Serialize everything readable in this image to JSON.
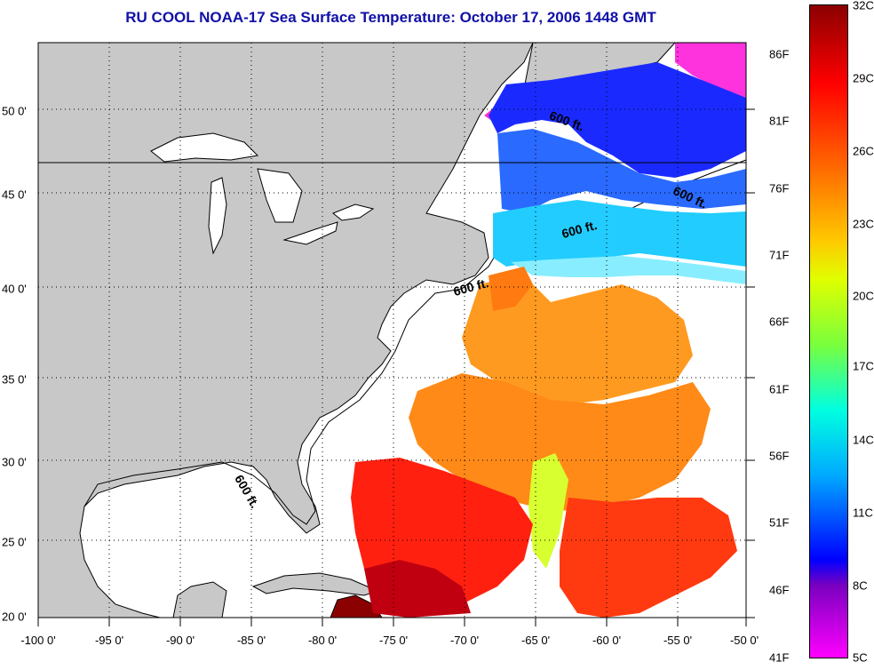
{
  "title": "RU COOL  NOAA-17  Sea Surface Temperature:  October 17, 2006 1448 GMT",
  "lon_labels": [
    "-100 0'",
    "-95 0'",
    "-90 0'",
    "-85 0'",
    "-80 0'",
    "-75 0'",
    "-70 0'",
    "-65 0'",
    "-60 0'",
    "-55 0'",
    "-50 0'"
  ],
  "lat_labels": [
    "50 0'",
    "45 0'",
    "40 0'",
    "35 0'",
    "30 0'",
    "25 0'",
    "20 0'"
  ],
  "colorbar": {
    "fahrenheit": [
      "86F",
      "81F",
      "76F",
      "71F",
      "66F",
      "61F",
      "56F",
      "51F",
      "46F",
      "41F"
    ],
    "celsius": [
      "32C",
      "29C",
      "26C",
      "23C",
      "20C",
      "17C",
      "14C",
      "11C",
      "8C",
      "5C"
    ],
    "colors": [
      "#8b0000",
      "#ff0000",
      "#ff6a00",
      "#ffc800",
      "#e0ff00",
      "#00ffe0",
      "#00aaff",
      "#0000ff",
      "#7a00c0",
      "#ff00ff"
    ]
  },
  "contour_labels": [
    "600 ft.",
    "600 ft.",
    "600 ft.",
    "600 ft.",
    "600 ft."
  ],
  "colors": {
    "land": "#c8c8c8",
    "title": "#1010a8",
    "ocean_nodata": "#ffffff"
  }
}
